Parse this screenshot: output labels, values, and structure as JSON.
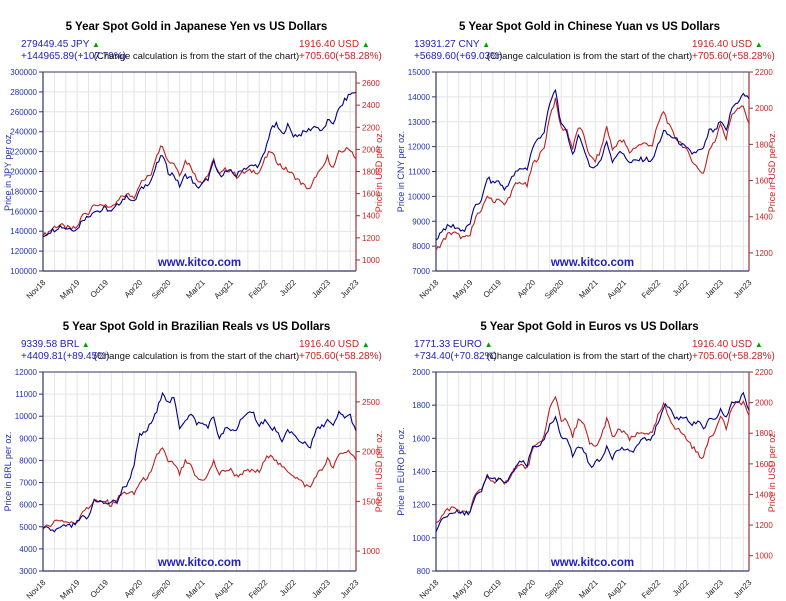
{
  "page": {
    "subtitle": "(Change calculation is from the start of the chart)",
    "watermark": "www.kitco.com",
    "arrow_up": "▲"
  },
  "colors": {
    "local_text": "#2222bb",
    "usd_text": "#cc2222",
    "arrow_green": "#00a000",
    "local_line": "#000088",
    "usd_line": "#bb2222",
    "grid": "#e4e4e4",
    "frame": "#333366",
    "frame_right": "#993333",
    "x_label": "#222222"
  },
  "chart_data": [
    {
      "type": "line",
      "title": "5 Year Spot Gold in Japanese Yen vs US Dollars",
      "local_stat": {
        "price": "279449.45 JPY",
        "change": "+144965.89(+107.79%)"
      },
      "usd_stat": {
        "price": "1916.40 USD",
        "change": "+705.60(+58.28%)"
      },
      "left_axis": {
        "label": "Price in JPY per oz.",
        "min": 100000,
        "max": 300000,
        "step": 20000
      },
      "right_axis": {
        "label": "Price in USD per oz.",
        "min": 900,
        "max": 2700,
        "tick_start": 1000,
        "tick_end": 2600,
        "step": 200
      },
      "x_ticks": [
        {
          "index": 0,
          "label": "Nov18"
        },
        {
          "index": 6,
          "label": "May19"
        },
        {
          "index": 11,
          "label": "Oct19"
        },
        {
          "index": 17,
          "label": "Apr20"
        },
        {
          "index": 22,
          "label": "Sep20"
        },
        {
          "index": 28,
          "label": "Mar21"
        },
        {
          "index": 33,
          "label": "Aug21"
        },
        {
          "index": 39,
          "label": "Feb22"
        },
        {
          "index": 44,
          "label": "Jul22"
        },
        {
          "index": 50,
          "label": "Jan23"
        },
        {
          "index": 55,
          "label": "Jun23"
        }
      ],
      "series": [
        {
          "name": "gold-in-usd",
          "axis": "right",
          "color_key": "usd_line",
          "values": [
            1215,
            1255,
            1300,
            1315,
            1295,
            1280,
            1295,
            1410,
            1425,
            1520,
            1480,
            1505,
            1460,
            1520,
            1580,
            1590,
            1570,
            1690,
            1730,
            1780,
            1960,
            2045,
            1890,
            1880,
            1775,
            1895,
            1850,
            1730,
            1710,
            1770,
            1900,
            1770,
            1815,
            1815,
            1755,
            1785,
            1800,
            1805,
            1795,
            1910,
            1985,
            1900,
            1840,
            1810,
            1765,
            1715,
            1665,
            1640,
            1770,
            1815,
            1925,
            1830,
            1970,
            1995,
            2005,
            1916
          ]
        },
        {
          "name": "gold-in-jpy",
          "axis": "left",
          "color_key": "local_line",
          "values": [
            134484,
            139300,
            141700,
            145300,
            143100,
            142700,
            141800,
            152300,
            154600,
            161100,
            159800,
            163300,
            159100,
            165700,
            172200,
            174900,
            168800,
            180800,
            186000,
            191400,
            206800,
            216800,
            199400,
            196500,
            185500,
            196100,
            193300,
            183400,
            187200,
            192900,
            209000,
            195600,
            199700,
            199700,
            195700,
            202600,
            204300,
            205800,
            206400,
            219700,
            242200,
            247000,
            237400,
            246200,
            236500,
            236700,
            239800,
            242700,
            246000,
            239600,
            250300,
            248900,
            262000,
            271300,
            278000,
            279449
          ]
        }
      ]
    },
    {
      "type": "line",
      "title": "5 Year Spot Gold in Chinese Yuan vs US Dollars",
      "local_stat": {
        "price": "13931.27 CNY",
        "change": "+5689.60(+69.03%)"
      },
      "usd_stat": {
        "price": "1916.40 USD",
        "change": "+705.60(+58.28%)"
      },
      "left_axis": {
        "label": "Price in CNY per oz.",
        "min": 7000,
        "max": 15000,
        "step": 1000
      },
      "right_axis": {
        "label": "Price in USD per oz.",
        "min": 1100,
        "max": 2200,
        "tick_start": 1200,
        "tick_end": 2200,
        "step": 200
      },
      "x_ticks": [
        {
          "index": 0,
          "label": "Nov18"
        },
        {
          "index": 6,
          "label": "May19"
        },
        {
          "index": 11,
          "label": "Oct19"
        },
        {
          "index": 17,
          "label": "Apr20"
        },
        {
          "index": 22,
          "label": "Sep20"
        },
        {
          "index": 28,
          "label": "Mar21"
        },
        {
          "index": 33,
          "label": "Aug21"
        },
        {
          "index": 39,
          "label": "Feb22"
        },
        {
          "index": 44,
          "label": "Jul22"
        },
        {
          "index": 50,
          "label": "Jan23"
        },
        {
          "index": 55,
          "label": "Jun23"
        }
      ],
      "series": [
        {
          "name": "gold-in-usd",
          "axis": "right",
          "color_key": "usd_line",
          "values": [
            1215,
            1255,
            1300,
            1315,
            1295,
            1280,
            1295,
            1410,
            1425,
            1520,
            1480,
            1505,
            1460,
            1520,
            1580,
            1590,
            1570,
            1690,
            1730,
            1780,
            1960,
            2045,
            1890,
            1880,
            1775,
            1895,
            1850,
            1730,
            1710,
            1770,
            1900,
            1770,
            1815,
            1815,
            1755,
            1785,
            1800,
            1805,
            1795,
            1910,
            1985,
            1900,
            1840,
            1810,
            1765,
            1715,
            1665,
            1640,
            1770,
            1815,
            1925,
            1830,
            1970,
            1995,
            2005,
            1916
          ]
        },
        {
          "name": "gold-in-cny",
          "axis": "left",
          "color_key": "local_line",
          "values": [
            8242,
            8630,
            8775,
            8810,
            8700,
            8615,
            8935,
            9690,
            9805,
            10745,
            10540,
            10625,
            10265,
            10625,
            10950,
            11130,
            11115,
            11965,
            12335,
            12585,
            13720,
            14300,
            12850,
            12595,
            11680,
            12375,
            11970,
            11175,
            11200,
            11470,
            12215,
            11435,
            11745,
            11725,
            11320,
            11425,
            11485,
            11500,
            11415,
            12070,
            12605,
            12445,
            12330,
            12125,
            11915,
            11730,
            11820,
            11890,
            12655,
            12615,
            12995,
            12625,
            13555,
            13805,
            14100,
            13931
          ]
        }
      ]
    },
    {
      "type": "line",
      "title": "5 Year Spot Gold in Brazilian Reals vs US Dollars",
      "local_stat": {
        "price": "9339.58 BRL",
        "change": "+4409.81(+89.45%)"
      },
      "usd_stat": {
        "price": "1916.40 USD",
        "change": "+705.60(+58.28%)"
      },
      "left_axis": {
        "label": "Price in BRL per oz.",
        "min": 3000,
        "max": 12000,
        "step": 1000
      },
      "right_axis": {
        "label": "Price in USD per oz.",
        "min": 800,
        "max": 2800,
        "tick_start": 1000,
        "tick_end": 2500,
        "step": 500
      },
      "x_ticks": [
        {
          "index": 0,
          "label": "Nov18"
        },
        {
          "index": 6,
          "label": "May19"
        },
        {
          "index": 11,
          "label": "Oct19"
        },
        {
          "index": 17,
          "label": "Apr20"
        },
        {
          "index": 22,
          "label": "Sep20"
        },
        {
          "index": 28,
          "label": "Mar21"
        },
        {
          "index": 33,
          "label": "Aug21"
        },
        {
          "index": 39,
          "label": "Feb22"
        },
        {
          "index": 44,
          "label": "Jul22"
        },
        {
          "index": 50,
          "label": "Jan23"
        },
        {
          "index": 55,
          "label": "Jun23"
        }
      ],
      "series": [
        {
          "name": "gold-in-usd",
          "axis": "right",
          "color_key": "usd_line",
          "values": [
            1215,
            1255,
            1300,
            1315,
            1295,
            1280,
            1295,
            1410,
            1425,
            1520,
            1480,
            1505,
            1460,
            1520,
            1580,
            1590,
            1570,
            1690,
            1730,
            1780,
            1960,
            2045,
            1890,
            1880,
            1775,
            1895,
            1850,
            1730,
            1710,
            1770,
            1900,
            1770,
            1815,
            1815,
            1755,
            1785,
            1800,
            1805,
            1795,
            1910,
            1985,
            1900,
            1840,
            1810,
            1765,
            1715,
            1665,
            1640,
            1770,
            1815,
            1925,
            1830,
            1970,
            1995,
            2005,
            1916
          ]
        },
        {
          "name": "gold-in-brl",
          "axis": "left",
          "color_key": "local_line",
          "values": [
            4930,
            4895,
            4810,
            4930,
            5050,
            5020,
            5180,
            5430,
            5385,
            6230,
            6155,
            6020,
            6130,
            6125,
            6715,
            7000,
            7850,
            9125,
            9255,
            9700,
            10190,
            11145,
            10585,
            10810,
            9495,
            9855,
            10080,
            9690,
            9660,
            9560,
            9975,
            8940,
            9440,
            9345,
            9390,
            9995,
            10080,
            10110,
            9605,
            9835,
            9430,
            9405,
            8740,
            9410,
            9180,
            8830,
            8825,
            8610,
            9380,
            9530,
            9820,
            9515,
            10145,
            9975,
            10025,
            9340
          ]
        }
      ]
    },
    {
      "type": "line",
      "title": "5 Year Spot Gold in Euros vs US Dollars",
      "local_stat": {
        "price": "1771.33 EURO",
        "change": "+734.40(+70.82%)"
      },
      "usd_stat": {
        "price": "1916.40 USD",
        "change": "+705.60(+58.28%)"
      },
      "left_axis": {
        "label": "Price in EURO per oz.",
        "min": 800,
        "max": 2000,
        "step": 200
      },
      "right_axis": {
        "label": "Price in USD per oz.",
        "min": 900,
        "max": 2200,
        "tick_start": 1000,
        "tick_end": 2200,
        "step": 200
      },
      "x_ticks": [
        {
          "index": 0,
          "label": "Nov18"
        },
        {
          "index": 6,
          "label": "May19"
        },
        {
          "index": 11,
          "label": "Oct19"
        },
        {
          "index": 17,
          "label": "Apr20"
        },
        {
          "index": 22,
          "label": "Sep20"
        },
        {
          "index": 28,
          "label": "Mar21"
        },
        {
          "index": 33,
          "label": "Aug21"
        },
        {
          "index": 39,
          "label": "Feb22"
        },
        {
          "index": 44,
          "label": "Jul22"
        },
        {
          "index": 50,
          "label": "Jan23"
        },
        {
          "index": 55,
          "label": "Jun23"
        }
      ],
      "series": [
        {
          "name": "gold-in-usd",
          "axis": "right",
          "color_key": "usd_line",
          "values": [
            1215,
            1255,
            1300,
            1315,
            1295,
            1280,
            1295,
            1410,
            1425,
            1520,
            1480,
            1505,
            1460,
            1520,
            1580,
            1590,
            1570,
            1690,
            1730,
            1780,
            1960,
            2045,
            1890,
            1880,
            1775,
            1895,
            1850,
            1730,
            1710,
            1770,
            1900,
            1770,
            1815,
            1815,
            1755,
            1785,
            1800,
            1805,
            1795,
            1910,
            1985,
            1900,
            1840,
            1810,
            1765,
            1715,
            1665,
            1640,
            1770,
            1815,
            1925,
            1830,
            1970,
            1995,
            2005,
            1916
          ]
        },
        {
          "name": "gold-in-euro",
          "axis": "left",
          "color_key": "local_line",
          "values": [
            1037,
            1106,
            1135,
            1159,
            1151,
            1143,
            1159,
            1248,
            1278,
            1376,
            1352,
            1356,
            1325,
            1363,
            1430,
            1459,
            1434,
            1550,
            1559,
            1582,
            1675,
            1718,
            1609,
            1607,
            1492,
            1553,
            1529,
            1430,
            1455,
            1469,
            1557,
            1487,
            1532,
            1538,
            1513,
            1539,
            1586,
            1593,
            1603,
            1690,
            1796,
            1792,
            1720,
            1724,
            1730,
            1681,
            1699,
            1657,
            1710,
            1704,
            1774,
            1718,
            1824,
            1814,
            1865,
            1771
          ]
        }
      ]
    }
  ]
}
